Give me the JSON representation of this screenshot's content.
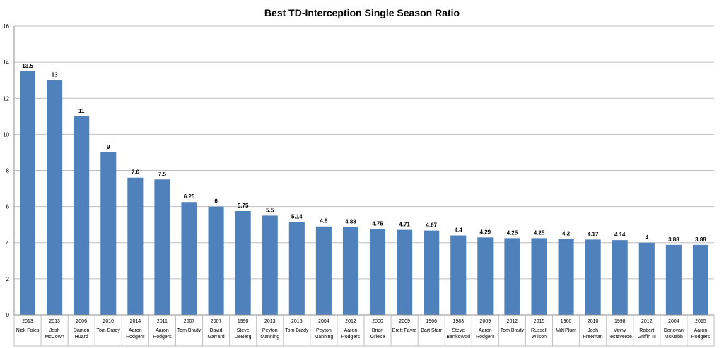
{
  "chart_data": {
    "type": "bar",
    "title": "Best TD-Interception Single Season Ratio",
    "xlabel": "",
    "ylabel": "",
    "ylim": [
      0,
      16
    ],
    "yticks": [
      0,
      2,
      4,
      6,
      8,
      10,
      12,
      14,
      16
    ],
    "grid": true,
    "bar_color": "#4F81BD",
    "grid_color": "#BFBFBF",
    "categories": [
      {
        "year": "2013",
        "name": [
          "Nick Foles"
        ]
      },
      {
        "year": "2013",
        "name": [
          "Josh",
          "McCown"
        ]
      },
      {
        "year": "2006",
        "name": [
          "Damon",
          "Huard"
        ]
      },
      {
        "year": "2010",
        "name": [
          "Tom Brady"
        ]
      },
      {
        "year": "2014",
        "name": [
          "Aaron",
          "Rodgers"
        ]
      },
      {
        "year": "2011",
        "name": [
          "Aaron",
          "Rodgers"
        ]
      },
      {
        "year": "2007",
        "name": [
          "Tom Brady"
        ]
      },
      {
        "year": "2007",
        "name": [
          "David",
          "Garrard"
        ]
      },
      {
        "year": "1990",
        "name": [
          "Steve",
          "DeBerg"
        ]
      },
      {
        "year": "2013",
        "name": [
          "Peyton",
          "Manning"
        ]
      },
      {
        "year": "2015",
        "name": [
          "Tom Brady"
        ]
      },
      {
        "year": "2004",
        "name": [
          "Peyton",
          "Manning"
        ]
      },
      {
        "year": "2012",
        "name": [
          "Aaron",
          "Rodgers"
        ]
      },
      {
        "year": "2000",
        "name": [
          "Brian",
          "Griese"
        ]
      },
      {
        "year": "2009",
        "name": [
          "Brett Favre"
        ]
      },
      {
        "year": "1966",
        "name": [
          "Bart Starr"
        ]
      },
      {
        "year": "1983",
        "name": [
          "Steve",
          "Bartkowski"
        ]
      },
      {
        "year": "2009",
        "name": [
          "Aaron",
          "Rodgers"
        ]
      },
      {
        "year": "2012",
        "name": [
          "Tom Brady"
        ]
      },
      {
        "year": "2015",
        "name": [
          "Russell",
          "Wilson"
        ]
      },
      {
        "year": "1960",
        "name": [
          "Milt Plum"
        ]
      },
      {
        "year": "2010",
        "name": [
          "Josh",
          "Freeman"
        ]
      },
      {
        "year": "1998",
        "name": [
          "Vinny",
          "Testaverde"
        ]
      },
      {
        "year": "2012",
        "name": [
          "Robert",
          "Griffin III"
        ]
      },
      {
        "year": "2004",
        "name": [
          "Donovan",
          "McNabb"
        ]
      },
      {
        "year": "2015",
        "name": [
          "Aaron",
          "Rodgers"
        ]
      }
    ],
    "values": [
      13.5,
      13,
      11,
      9,
      7.6,
      7.5,
      6.25,
      6,
      5.75,
      5.5,
      5.14,
      4.9,
      4.88,
      4.75,
      4.71,
      4.67,
      4.4,
      4.29,
      4.25,
      4.25,
      4.2,
      4.17,
      4.14,
      4,
      3.88,
      3.88
    ]
  }
}
